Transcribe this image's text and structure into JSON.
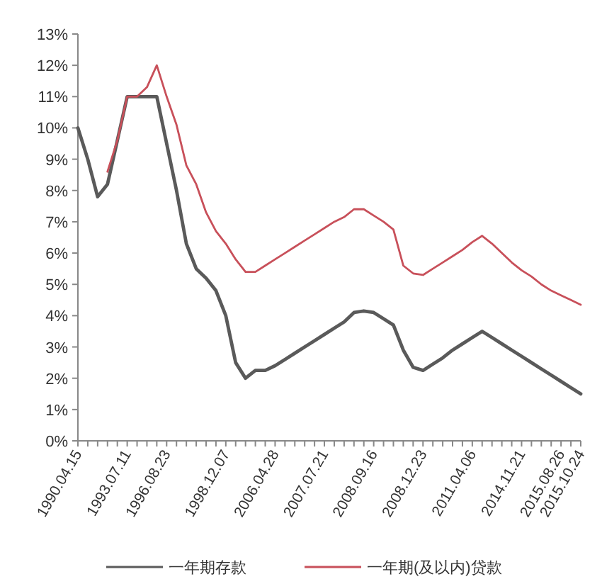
{
  "chart_data": {
    "type": "line",
    "categories": [
      "1990.04.15",
      null,
      null,
      null,
      null,
      "1993.07.11",
      null,
      null,
      null,
      "1996.08.23",
      null,
      null,
      null,
      null,
      null,
      "1998.12.07",
      null,
      null,
      null,
      null,
      "2006.04.28",
      null,
      null,
      null,
      null,
      "2007.07.21",
      null,
      null,
      null,
      null,
      "2008.09.16",
      null,
      null,
      null,
      null,
      "2008.12.23",
      null,
      null,
      null,
      null,
      "2011.04.06",
      null,
      null,
      null,
      null,
      "2014.11.21",
      null,
      null,
      null,
      "2015.08.26",
      null,
      "2015.10.24"
    ],
    "series": [
      {
        "name": "一年期存款",
        "color": "#5a5a5a",
        "values": [
          10.0,
          9.0,
          7.8,
          8.2,
          9.6,
          11.0,
          11.0,
          11.0,
          11.0,
          9.5,
          8.0,
          6.3,
          5.5,
          5.2,
          4.8,
          4.0,
          2.5,
          2.0,
          2.25,
          2.25,
          2.4,
          2.6,
          2.8,
          3.0,
          3.2,
          3.4,
          3.6,
          3.8,
          4.1,
          4.15,
          4.1,
          3.9,
          3.7,
          2.9,
          2.35,
          2.25,
          2.45,
          2.65,
          2.9,
          3.1,
          3.3,
          3.5,
          3.3,
          3.1,
          2.9,
          2.7,
          2.5,
          2.3,
          2.1,
          1.9,
          1.7,
          1.5
        ]
      },
      {
        "name": "一年期(及以内)贷款",
        "color": "#c8505a",
        "values": [
          null,
          null,
          null,
          8.6,
          9.6,
          11.0,
          11.0,
          11.3,
          12.0,
          11.0,
          10.1,
          8.8,
          8.2,
          7.3,
          6.7,
          6.3,
          5.8,
          5.4,
          5.4,
          5.6,
          5.8,
          6.0,
          6.2,
          6.4,
          6.6,
          6.8,
          7.0,
          7.15,
          7.4,
          7.4,
          7.2,
          7.0,
          6.75,
          5.6,
          5.35,
          5.3,
          5.5,
          5.7,
          5.9,
          6.1,
          6.35,
          6.55,
          6.3,
          6.0,
          5.7,
          5.45,
          5.25,
          5.0,
          4.8,
          4.65,
          4.5,
          4.35
        ]
      }
    ],
    "ylim": [
      0,
      13
    ],
    "yticks": [
      {
        "value": 0,
        "label": "0%"
      },
      {
        "value": 1,
        "label": "1%"
      },
      {
        "value": 2,
        "label": "2%"
      },
      {
        "value": 3,
        "label": "3%"
      },
      {
        "value": 4,
        "label": "4%"
      },
      {
        "value": 5,
        "label": "5%"
      },
      {
        "value": 6,
        "label": "6%"
      },
      {
        "value": 7,
        "label": "7%"
      },
      {
        "value": 8,
        "label": "8%"
      },
      {
        "value": 9,
        "label": "9%"
      },
      {
        "value": 10,
        "label": "10%"
      },
      {
        "value": 11,
        "label": "11%"
      },
      {
        "value": 12,
        "label": "12%"
      },
      {
        "value": 13,
        "label": "13%"
      }
    ],
    "legend": "bottom"
  }
}
